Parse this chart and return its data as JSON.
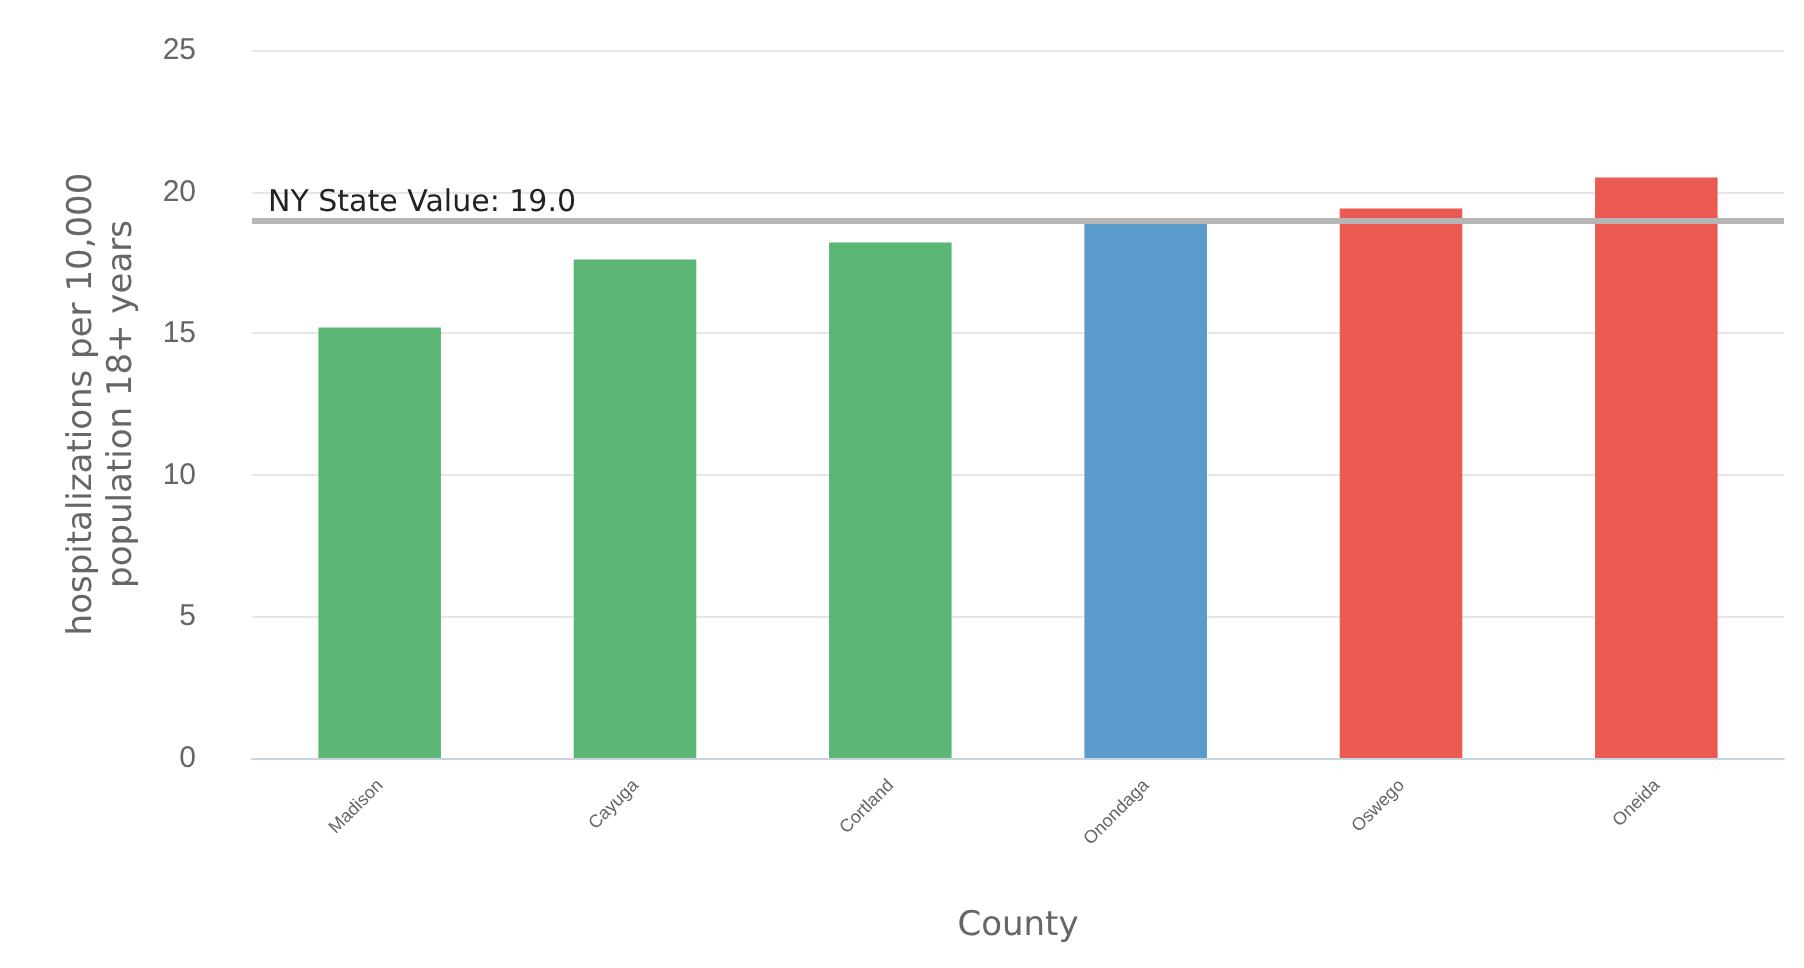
{
  "chart_data": {
    "type": "bar",
    "xlabel": "County",
    "ylabel": "hospitalizations per 10,000\npopulation 18+ years",
    "categories": [
      "Madison",
      "Cayuga",
      "Cortland",
      "Onondaga",
      "Oswego",
      "Oneida"
    ],
    "values": [
      15.2,
      17.6,
      18.2,
      18.9,
      19.4,
      20.5
    ],
    "colors": [
      "#5cb776",
      "#5cb776",
      "#5cb776",
      "#5b9bcb",
      "#eb5a51",
      "#eb5a51"
    ],
    "ylim": [
      0,
      25
    ],
    "yticks": [
      0,
      5,
      10,
      15,
      20,
      25
    ],
    "grid": "y",
    "ref_lines": [
      {
        "axis": "y",
        "value": 19.0,
        "label": "NY State Value: 19.0",
        "color": "#b5b5b5"
      }
    ]
  }
}
